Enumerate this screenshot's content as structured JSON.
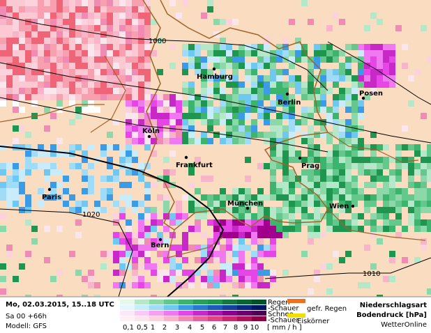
{
  "map": {
    "cities": [
      "Hamburg",
      "Berlin",
      "Posen",
      "Köln",
      "Frankfurt",
      "Prag",
      "Paris",
      "München",
      "Wien",
      "Bern"
    ],
    "isobars": [
      "1000",
      "1020",
      "1010"
    ]
  },
  "footer": {
    "datetime": "Mo, 02.03.2015, 15..18 UTC",
    "run": "Sa 00 +66h",
    "model": "Modell: GFS"
  },
  "legend": {
    "rows": [
      "Regen",
      "-Schauer",
      "Schnee",
      "-Schauer"
    ],
    "extra": [
      "gefr. Regen",
      "Eiskörner"
    ],
    "scale": [
      "0,1",
      "0,5",
      "1",
      "2",
      "3",
      "4",
      "5",
      "6",
      "7",
      "8",
      "9",
      "10"
    ],
    "unit": "[ mm / h ]"
  },
  "title": {
    "lines": [
      "Niederschlagsart",
      "Bodendruck [hPa]"
    ],
    "brand": "WetterOnline"
  }
}
